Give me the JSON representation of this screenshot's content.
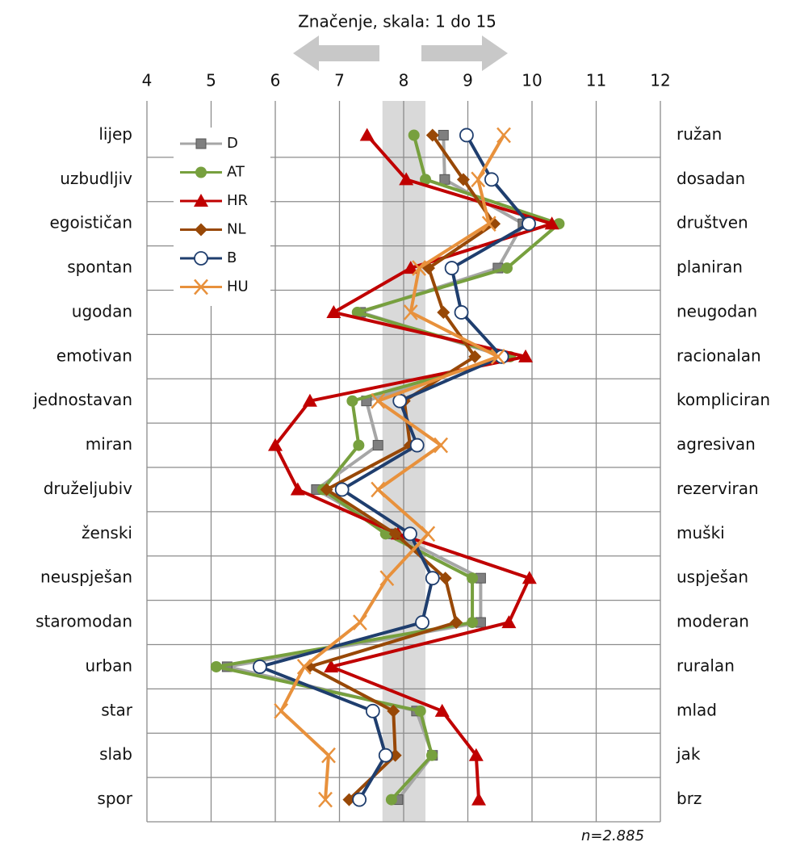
{
  "chart_data": {
    "type": "line",
    "orientation": "horizontal",
    "title": "Značenje, skala: 1 do 15",
    "note": "n=2.885",
    "categories": [
      "lijep",
      "uzbudljiv",
      "egoističan",
      "spontan",
      "ugodan",
      "emotivan",
      "jednostavan",
      "miran",
      "druželjubiv",
      "ženski",
      "neuspješan",
      "staromodan",
      "urban",
      "star",
      "slab",
      "spor"
    ],
    "right_labels": [
      "ružan",
      "dosadan",
      "društven",
      "planiran",
      "neugodan",
      "racionalan",
      "kompliciran",
      "agresivan",
      "rezerviran",
      "muški",
      "uspješan",
      "moderan",
      "ruralan",
      "mlad",
      "jak",
      "brz"
    ],
    "xlim": [
      4,
      12
    ],
    "xticks": [
      4,
      5,
      6,
      7,
      8,
      9,
      10,
      11,
      12
    ],
    "grid": true,
    "legend": "upper left",
    "band": {
      "range": [
        7.67,
        8.34
      ],
      "color": "#d9d9d9"
    },
    "series": [
      {
        "name": "D",
        "color": "#a6a6a6",
        "marker": "square",
        "marker_color": "#7f7f7f",
        "values": [
          8.62,
          8.64,
          9.86,
          9.47,
          7.33,
          9.58,
          7.42,
          7.6,
          6.64,
          7.84,
          9.2,
          9.2,
          5.25,
          8.2,
          8.45,
          7.91
        ]
      },
      {
        "name": "AT",
        "color": "#77a03e",
        "marker": "circle",
        "marker_color": "#77a03e",
        "values": [
          8.16,
          8.34,
          10.42,
          9.61,
          7.28,
          9.66,
          7.2,
          7.3,
          6.74,
          7.72,
          9.07,
          9.07,
          5.08,
          8.26,
          8.44,
          7.81
        ]
      },
      {
        "name": "HR",
        "color": "#c00000",
        "marker": "triangle",
        "marker_color": "#c00000",
        "values": [
          7.43,
          8.04,
          10.31,
          8.11,
          6.91,
          9.9,
          6.54,
          6.0,
          6.35,
          7.91,
          9.96,
          9.64,
          6.87,
          8.6,
          9.13,
          9.17
        ]
      },
      {
        "name": "NL",
        "color": "#984807",
        "marker": "diamond",
        "marker_color": "#984807",
        "values": [
          8.45,
          8.93,
          9.41,
          8.39,
          8.62,
          9.11,
          8.01,
          8.1,
          6.8,
          7.87,
          8.65,
          8.82,
          6.53,
          7.84,
          7.87,
          7.15
        ]
      },
      {
        "name": "B",
        "color": "#1f3e6e",
        "marker": "open-circle",
        "marker_color": "#1f3e6e",
        "values": [
          8.98,
          9.37,
          9.95,
          8.75,
          8.9,
          9.53,
          7.94,
          8.21,
          7.04,
          8.1,
          8.45,
          8.29,
          5.76,
          7.52,
          7.72,
          7.31
        ]
      },
      {
        "name": "HU",
        "color": "#e8913c",
        "marker": "x",
        "marker_color": "#e8913c",
        "values": [
          9.56,
          9.16,
          9.33,
          8.24,
          8.11,
          9.47,
          7.6,
          8.58,
          7.6,
          8.38,
          7.74,
          7.32,
          6.45,
          6.09,
          6.83,
          6.78
        ]
      }
    ]
  }
}
